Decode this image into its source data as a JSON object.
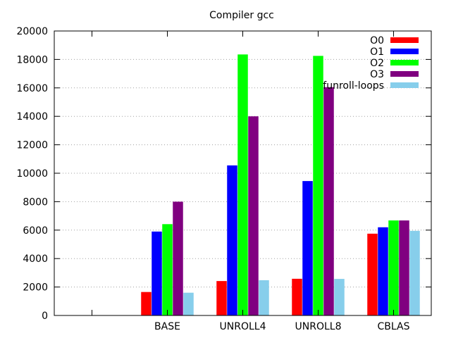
{
  "chart_data": {
    "type": "bar",
    "title": "Compiler gcc",
    "xlabel": "",
    "ylabel": "",
    "categories": [
      "",
      "BASE",
      "UNROLL4",
      "UNROLL8",
      "CBLAS"
    ],
    "ylim": [
      0,
      20000
    ],
    "yticks": [
      0,
      2000,
      4000,
      6000,
      8000,
      10000,
      12000,
      14000,
      16000,
      18000,
      20000
    ],
    "grid": "horizontal dotted",
    "legend_position": "top-right",
    "series": [
      {
        "name": "O0",
        "color": "#ff0000",
        "values": [
          null,
          1650,
          2420,
          2580,
          5750
        ]
      },
      {
        "name": "O1",
        "color": "#0000ff",
        "values": [
          null,
          5900,
          10550,
          9450,
          6200
        ]
      },
      {
        "name": "O2",
        "color": "#00ff00",
        "values": [
          null,
          6420,
          18350,
          18250,
          6680
        ]
      },
      {
        "name": "O3",
        "color": "#800080",
        "values": [
          null,
          8000,
          14000,
          16050,
          6680
        ]
      },
      {
        "name": "funroll-loops",
        "color": "#87ceeb",
        "values": [
          null,
          1600,
          2480,
          2570,
          5950
        ]
      }
    ]
  }
}
